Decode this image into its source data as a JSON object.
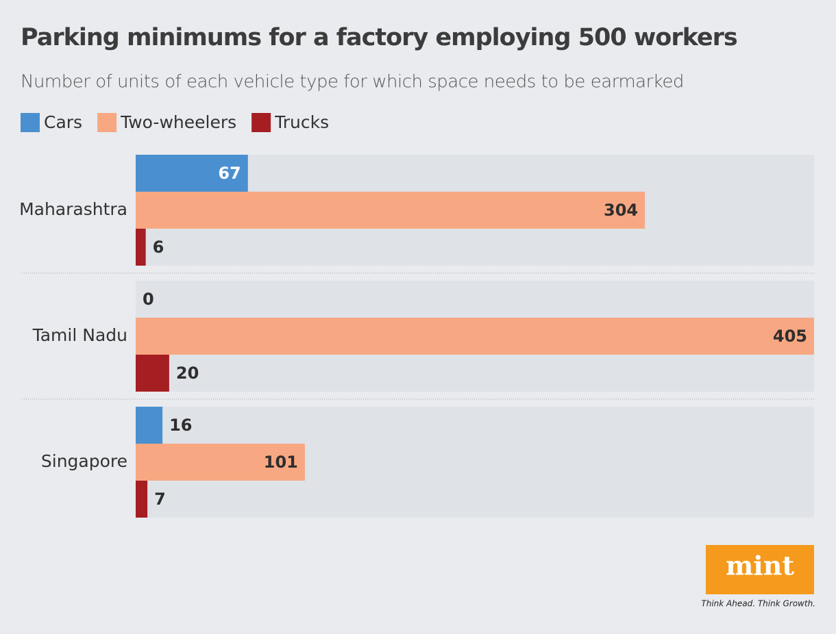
{
  "chart_data": {
    "type": "grouped-hbar",
    "title": "Parking minimums for a factory employing 500 workers",
    "subtitle": "Number of units of each vehicle type for which space needs to be earmarked",
    "categories": [
      "Maharashtra",
      "Tamil Nadu",
      "Singapore"
    ],
    "series": [
      {
        "name": "Cars",
        "color": "#4a90d0",
        "label_color": "#ffffff",
        "values": [
          67,
          0,
          16
        ]
      },
      {
        "name": "Two-wheelers",
        "color": "#f7a882",
        "label_color": "#2e2e2e",
        "values": [
          304,
          405,
          101
        ]
      },
      {
        "name": "Trucks",
        "color": "#a51e22",
        "label_color": "#ffffff",
        "values": [
          6,
          20,
          7
        ]
      }
    ],
    "xlim": [
      0,
      405
    ]
  },
  "branding": {
    "logo": "mint",
    "tagline": "Think Ahead. Think Growth."
  }
}
